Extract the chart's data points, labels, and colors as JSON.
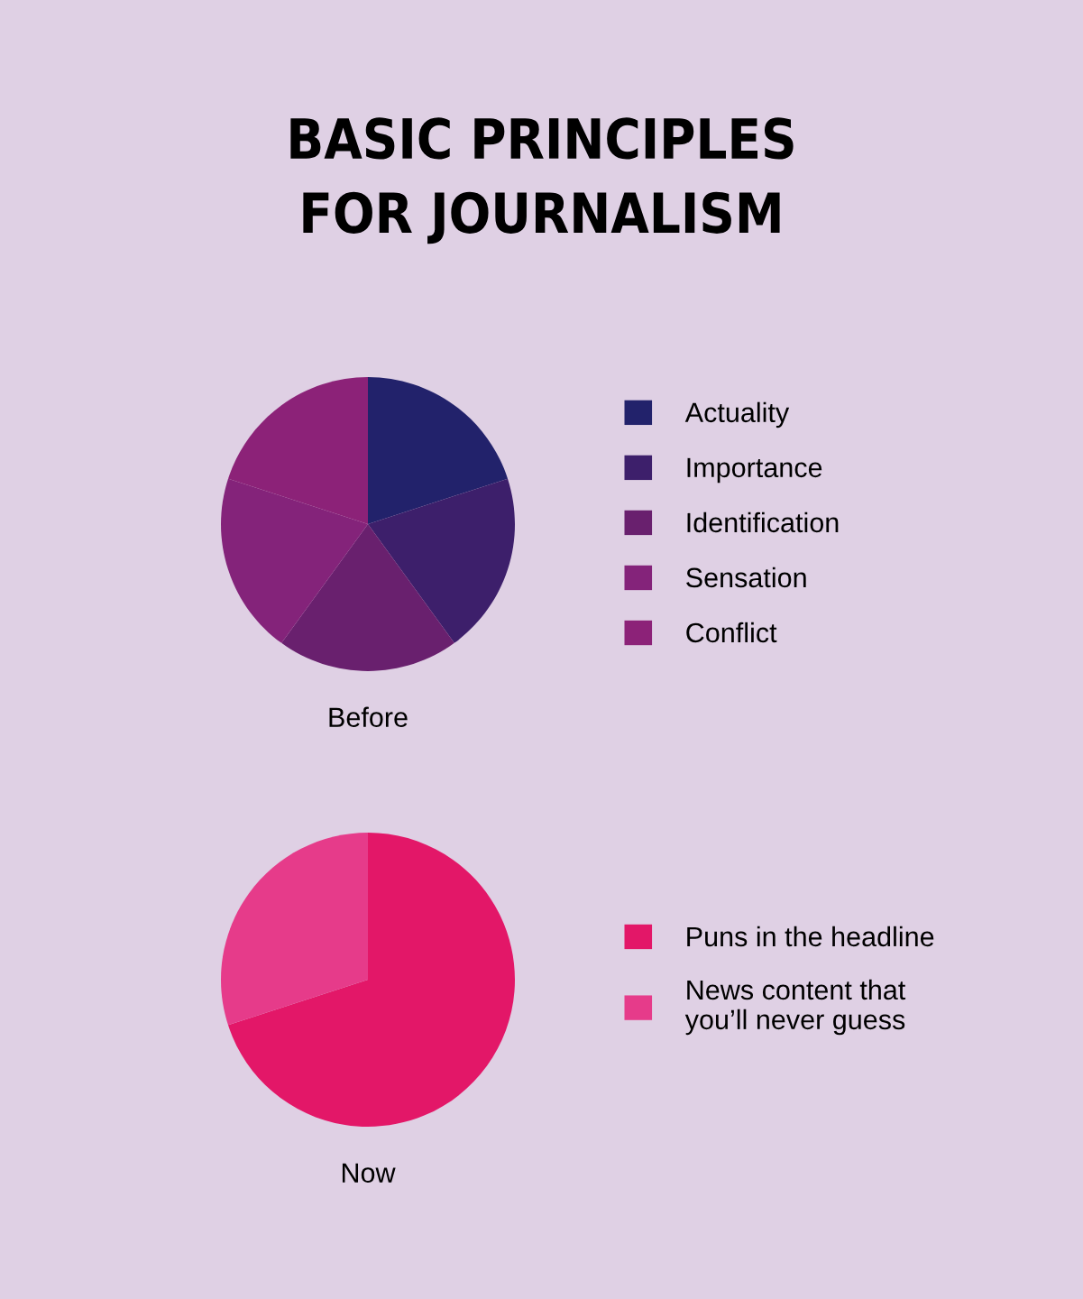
{
  "chart_data": [
    {
      "type": "pie",
      "title": "BASIC PRINCIPLES\nFOR JOURNALISM",
      "xlabel": "Before",
      "legend": "right",
      "categories": [
        "Actuality",
        "Importance",
        "Identification",
        "Sensation",
        "Conflict"
      ],
      "values": [
        20,
        20,
        20,
        20,
        20
      ],
      "colors": [
        "#22226b",
        "#3d1f6b",
        "#69206e",
        "#84237a",
        "#8c2278"
      ]
    },
    {
      "type": "pie",
      "xlabel": "Now",
      "legend": "right",
      "categories": [
        "Puns in the headline",
        "News content that\nyou’ll never guess"
      ],
      "values": [
        70,
        30
      ],
      "colors": [
        "#e31768",
        "#e63b8a"
      ]
    }
  ]
}
